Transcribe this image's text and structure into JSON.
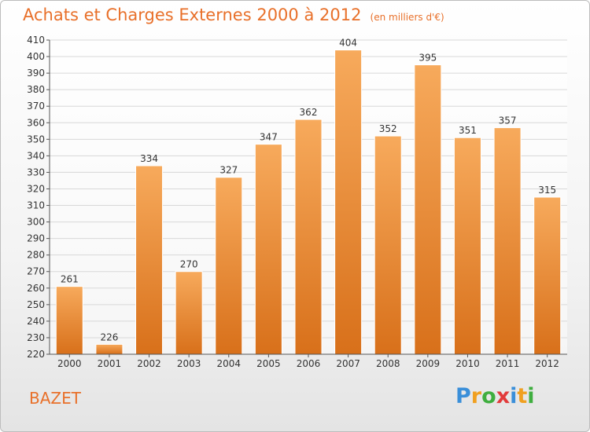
{
  "title": "Achats et Charges Externes 2000 à 2012",
  "subtitle": "(en milliers d'€)",
  "commune": "BAZET",
  "logo": {
    "letters": [
      "P",
      "r",
      "o",
      "x",
      "i",
      "t",
      "i"
    ],
    "colors": [
      "#3a8fd9",
      "#f0a020",
      "#3fae3f",
      "#e23b3b",
      "#3a8fd9",
      "#f0a020",
      "#3fae3f"
    ]
  },
  "colors": {
    "bar": "#f08a2e",
    "bar_light": "#f7aa5c",
    "bar_dark": "#d8701a",
    "text": "#e8702a",
    "grid": "#d8d8d8"
  },
  "chart_data": {
    "type": "bar",
    "categories": [
      "2000",
      "2001",
      "2002",
      "2003",
      "2004",
      "2005",
      "2006",
      "2007",
      "2008",
      "2009",
      "2010",
      "2011",
      "2012"
    ],
    "values": [
      261,
      226,
      334,
      270,
      327,
      347,
      362,
      404,
      352,
      395,
      351,
      357,
      315
    ],
    "ylim": [
      220,
      410
    ],
    "yticks": [
      220,
      230,
      240,
      250,
      260,
      270,
      280,
      290,
      300,
      310,
      320,
      330,
      340,
      350,
      360,
      370,
      380,
      390,
      400,
      410
    ],
    "grid": true
  }
}
